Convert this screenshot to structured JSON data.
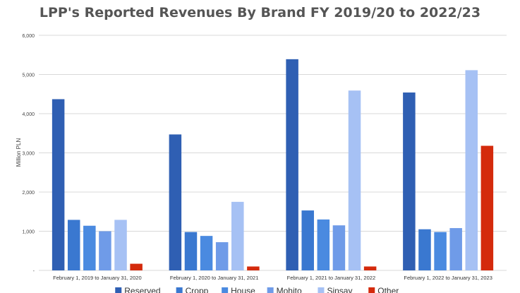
{
  "chart_data": {
    "type": "bar",
    "title": "LPP's Reported Revenues By Brand FY 2019/20 to 2022/23",
    "ylabel": "Million PLN",
    "xlabel": "",
    "ylim": [
      0,
      6000
    ],
    "yticks": [
      0,
      1000,
      2000,
      3000,
      4000,
      5000,
      6000
    ],
    "ytick_labels": [
      "-",
      "1,000",
      "2,000",
      "3,000",
      "4,000",
      "5,000",
      "6,000"
    ],
    "grid": true,
    "legend_position": "bottom",
    "categories": [
      "February 1, 2019 to January 31, 2020",
      "February 1, 2020 to January 31, 2021",
      "February 1, 2021 to January 31, 2022",
      "February 1, 2022 to January 31, 2023"
    ],
    "series": [
      {
        "name": "Reserved",
        "color": "#2f5fb3",
        "values": [
          4370,
          3470,
          5390,
          4540
        ]
      },
      {
        "name": "Cropp",
        "color": "#3a78d0",
        "values": [
          1290,
          980,
          1530,
          1050
        ]
      },
      {
        "name": "House",
        "color": "#4a8ae0",
        "values": [
          1140,
          880,
          1300,
          980
        ]
      },
      {
        "name": "Mohito",
        "color": "#6f9be8",
        "values": [
          1000,
          720,
          1150,
          1080
        ]
      },
      {
        "name": "Sinsay",
        "color": "#a6c1f4",
        "values": [
          1290,
          1750,
          4590,
          5110
        ]
      },
      {
        "name": "Other",
        "color": "#d42a0c",
        "values": [
          170,
          100,
          100,
          3180
        ]
      }
    ]
  }
}
